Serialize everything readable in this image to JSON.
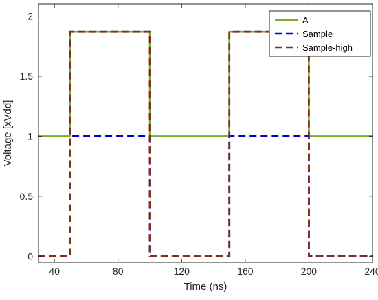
{
  "chart_data": {
    "type": "line",
    "title": "",
    "xlabel": "Time (ns)",
    "ylabel": "Voltage [xVdd]",
    "xlim": [
      30,
      240
    ],
    "ylim": [
      -0.05,
      2.1
    ],
    "xticks": [
      40,
      80,
      120,
      160,
      200,
      240
    ],
    "yticks": [
      0,
      0.5,
      1,
      1.5,
      2
    ],
    "xtick_labels": [
      "40",
      "80",
      "120",
      "160",
      "200",
      "240"
    ],
    "ytick_labels": [
      "0",
      "0.5",
      "1",
      "1.5",
      "2"
    ],
    "grid": false,
    "legend_position": "top-right",
    "series": [
      {
        "name": "A",
        "color": "#77AC30",
        "line_style": "solid",
        "x": [
          30,
          50,
          50,
          100,
          100,
          150,
          150,
          200,
          200,
          240
        ],
        "y": [
          1,
          1,
          1.87,
          1.87,
          1,
          1,
          1.87,
          1.87,
          1,
          1
        ]
      },
      {
        "name": "Sample",
        "color": "#0000CC",
        "line_style": "dashed",
        "x": [
          30,
          50,
          50,
          100,
          100,
          150,
          150,
          200,
          200,
          240
        ],
        "y": [
          0,
          0,
          1,
          1,
          0,
          0,
          1,
          1,
          0,
          0
        ]
      },
      {
        "name": "Sample-high",
        "color": "#7E2F1E",
        "line_style": "dashed",
        "x": [
          30,
          50,
          50,
          100,
          100,
          150,
          150,
          200,
          200,
          240
        ],
        "y": [
          0,
          0,
          1.87,
          1.87,
          0,
          0,
          1.87,
          1.87,
          0,
          0
        ]
      }
    ]
  }
}
